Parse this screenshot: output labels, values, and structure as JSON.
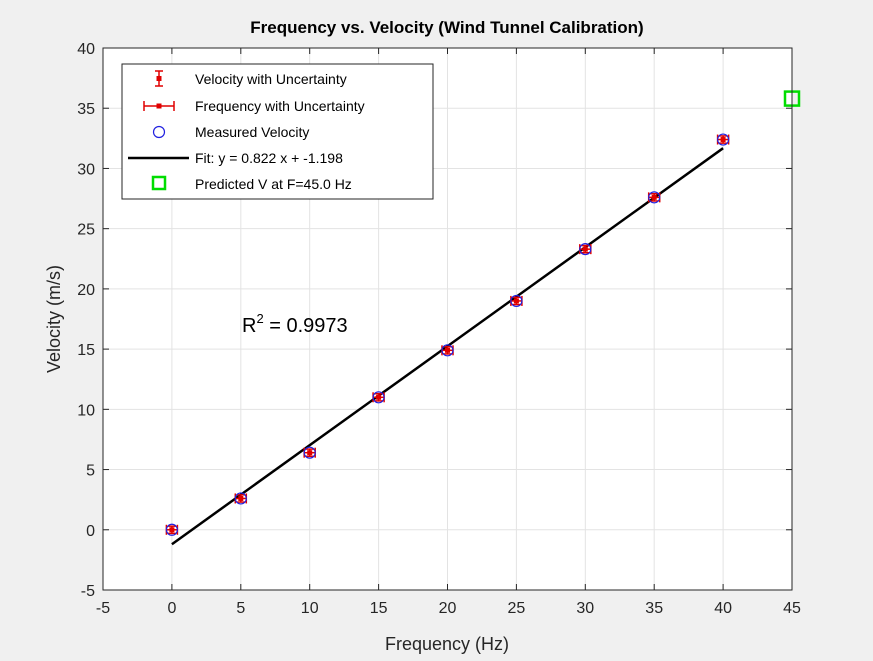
{
  "chart_data": {
    "type": "scatter",
    "title": "Frequency vs. Velocity (Wind Tunnel Calibration)",
    "xlabel": "Frequency (Hz)",
    "ylabel": "Velocity (m/s)",
    "xlim": [
      -5,
      45
    ],
    "ylim": [
      -5,
      40
    ],
    "xticks": [
      -5,
      0,
      5,
      10,
      15,
      20,
      25,
      30,
      35,
      40,
      45
    ],
    "yticks": [
      -5,
      0,
      5,
      10,
      15,
      20,
      25,
      30,
      35,
      40
    ],
    "grid": true,
    "legend_position": "top-left",
    "x": [
      0,
      5,
      10,
      15,
      20,
      25,
      30,
      35,
      40
    ],
    "series": [
      {
        "name": "Velocity with Uncertainty",
        "kind": "errorbar-y",
        "values": [
          0.0,
          2.6,
          6.4,
          11.0,
          14.9,
          19.0,
          23.3,
          27.6,
          32.4
        ],
        "uncertainty": 0.3,
        "color": "#e00000"
      },
      {
        "name": "Frequency with Uncertainty",
        "kind": "errorbar-x",
        "values": [
          0.0,
          2.6,
          6.4,
          11.0,
          14.9,
          19.0,
          23.3,
          27.6,
          32.4
        ],
        "uncertainty": 0.4,
        "color": "#e00000"
      },
      {
        "name": "Measured Velocity",
        "kind": "marker-circle",
        "values": [
          0.0,
          2.6,
          6.4,
          11.0,
          14.9,
          19.0,
          23.3,
          27.6,
          32.4
        ],
        "color": "#2020e0"
      },
      {
        "name": "Fit: y = 0.822 x + -1.198",
        "kind": "line",
        "slope": 0.822,
        "intercept": -1.198,
        "x_range": [
          0,
          40
        ],
        "color": "#000000"
      },
      {
        "name": "Predicted V at F=45.0 Hz",
        "kind": "marker-square",
        "x": 45,
        "value": 35.8,
        "color": "#00dd00"
      }
    ],
    "annotations": [
      {
        "text_base": "R",
        "text_sup": "2",
        "text_rest": " = 0.9973",
        "x": 5,
        "y": 16.3
      }
    ]
  }
}
